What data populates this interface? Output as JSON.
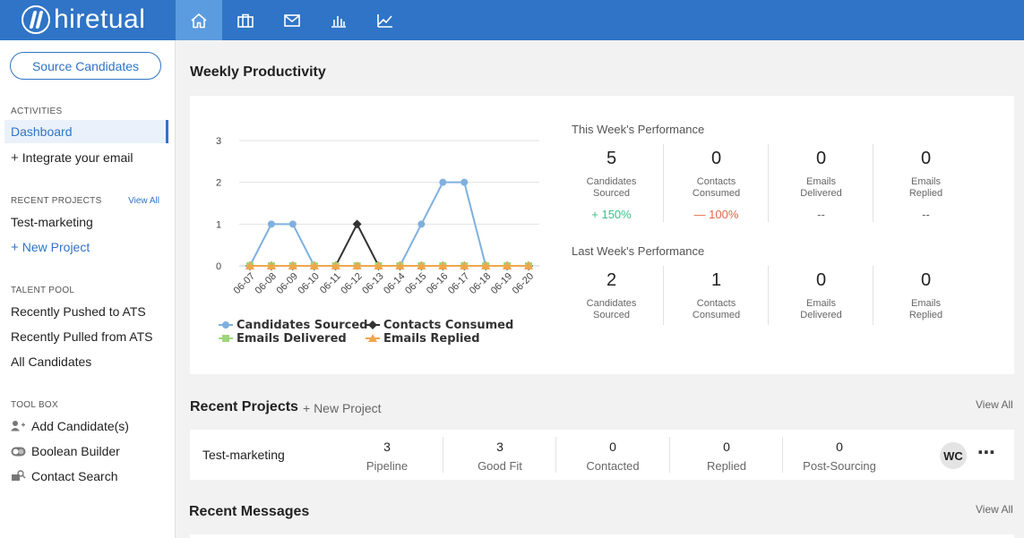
{
  "app": {
    "logo_text": "hiretual"
  },
  "nav": {
    "icons": [
      {
        "name": "home-icon",
        "active": true
      },
      {
        "name": "briefcase-icon",
        "active": false
      },
      {
        "name": "mail-icon",
        "active": false
      },
      {
        "name": "bar-chart-icon",
        "active": false
      },
      {
        "name": "line-chart-icon",
        "active": false
      }
    ]
  },
  "sidebar": {
    "source_button": "Source Candidates",
    "activities_title": "ACTIVITIES",
    "dashboard": "Dashboard",
    "integrate_email": "Integrate your email",
    "recent_projects_title": "RECENT PROJECTS",
    "view_all": "View All",
    "project_1": "Test-marketing",
    "new_project": "New Project",
    "talent_pool_title": "TALENT POOL",
    "recently_pushed": "Recently Pushed to ATS",
    "recently_pulled": "Recently Pulled from ATS",
    "all_candidates": "All Candidates",
    "toolbox_title": "TOOL BOX",
    "add_candidates": "Add Candidate(s)",
    "boolean_builder": "Boolean Builder",
    "contact_search": "Contact Search"
  },
  "weekly": {
    "title": "Weekly Productivity",
    "this_week_title": "This Week's Performance",
    "last_week_title": "Last Week's Performance",
    "this_week": [
      {
        "value": "5",
        "label1": "Candidates",
        "label2": "Sourced",
        "change": "+ 150%",
        "change_color": "#3cbf8a"
      },
      {
        "value": "0",
        "label1": "Contacts",
        "label2": "Consumed",
        "change": "— 100%",
        "change_color": "#e2694a"
      },
      {
        "value": "0",
        "label1": "Emails",
        "label2": "Delivered",
        "change": "--",
        "change_color": "#666666"
      },
      {
        "value": "0",
        "label1": "Emails",
        "label2": "Replied",
        "change": "--",
        "change_color": "#666666"
      }
    ],
    "last_week": [
      {
        "value": "2",
        "label1": "Candidates",
        "label2": "Sourced"
      },
      {
        "value": "1",
        "label1": "Contacts",
        "label2": "Consumed"
      },
      {
        "value": "0",
        "label1": "Emails",
        "label2": "Delivered"
      },
      {
        "value": "0",
        "label1": "Emails",
        "label2": "Replied"
      }
    ]
  },
  "chart_data": {
    "type": "line",
    "x": [
      "06-07",
      "06-08",
      "06-09",
      "06-10",
      "06-11",
      "06-12",
      "06-13",
      "06-14",
      "06-15",
      "06-16",
      "06-17",
      "06-18",
      "06-19",
      "06-20"
    ],
    "ylim": [
      0,
      3
    ],
    "yticks": [
      "0",
      "1",
      "2",
      "3"
    ],
    "grid": true,
    "legend_position": "bottom",
    "series": [
      {
        "name": "Candidates Sourced",
        "color": "#7fb0df",
        "marker": "circle",
        "values": [
          0,
          1,
          1,
          0,
          0,
          0,
          0,
          0,
          1,
          2,
          2,
          0,
          0,
          0
        ]
      },
      {
        "name": "Contacts Consumed",
        "color": "#333333",
        "marker": "diamond",
        "values": [
          0,
          0,
          0,
          0,
          0,
          1,
          0,
          0,
          0,
          0,
          0,
          0,
          0,
          0
        ]
      },
      {
        "name": "Emails Delivered",
        "color": "#9ed67a",
        "marker": "square",
        "values": [
          0,
          0,
          0,
          0,
          0,
          0,
          0,
          0,
          0,
          0,
          0,
          0,
          0,
          0
        ]
      },
      {
        "name": "Emails Replied",
        "color": "#f0a64b",
        "marker": "triangle",
        "values": [
          0,
          0,
          0,
          0,
          0,
          0,
          0,
          0,
          0,
          0,
          0,
          0,
          0,
          0
        ]
      }
    ]
  },
  "recent_projects": {
    "title": "Recent Projects",
    "new_project": "+ New Project",
    "view_all": "View All",
    "row": {
      "name": "Test-marketing",
      "stats": [
        {
          "value": "3",
          "label": "Pipeline"
        },
        {
          "value": "3",
          "label": "Good Fit"
        },
        {
          "value": "0",
          "label": "Contacted"
        },
        {
          "value": "0",
          "label": "Replied"
        },
        {
          "value": "0",
          "label": "Post-Sourcing"
        }
      ],
      "avatar": "WC",
      "more": "⋯"
    }
  },
  "recent_messages": {
    "title": "Recent Messages",
    "view_all": "View All"
  }
}
